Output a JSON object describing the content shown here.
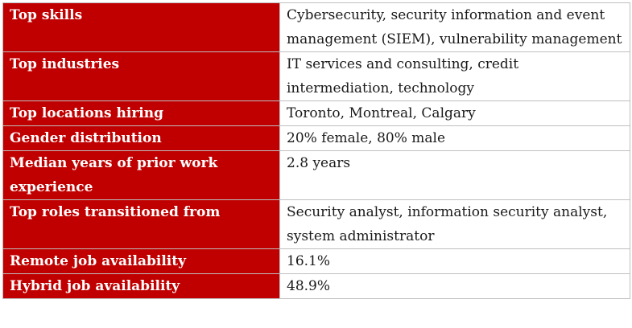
{
  "rows": [
    {
      "label": "Top skills",
      "value": "Cybersecurity, security information and event management (SIEM), vulnerability management"
    },
    {
      "label": "Top industries",
      "value": "IT services and consulting, credit intermediation, technology"
    },
    {
      "label": "Top locations hiring",
      "value": "Toronto, Montreal, Calgary"
    },
    {
      "label": "Gender distribution",
      "value": "20% female, 80% male"
    },
    {
      "label": "Median years of prior work experience",
      "value": "2.8 years"
    },
    {
      "label": "Top roles transitioned from",
      "value": "Security analyst, information security analyst, system administrator"
    },
    {
      "label": "Remote job availability",
      "value": "16.1%"
    },
    {
      "label": "Hybrid job availability",
      "value": "48.9%"
    }
  ],
  "colors": {
    "label_background": "#c00000",
    "label_text": "#ffffff",
    "value_text": "#1a1a1a",
    "border": "#bfbfbf"
  }
}
